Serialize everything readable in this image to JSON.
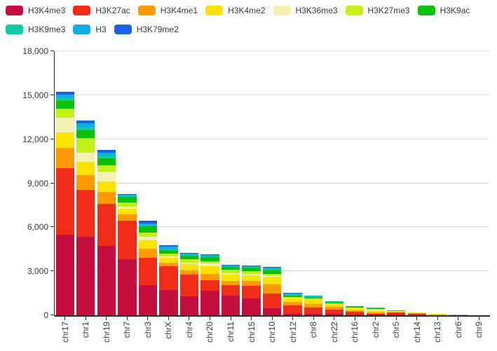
{
  "colors": {
    "background": "#ffffff",
    "grid_line": "#dcdcdc",
    "axis_line": "#2e2e2e",
    "x_axis_line": "#3a2b20",
    "axis_text": "#3b3b3b"
  },
  "chart_data": {
    "type": "bar",
    "stacked": true,
    "title": "",
    "xlabel": "",
    "ylabel": "",
    "grid": true,
    "legend_position": "top-left",
    "x_label_rotation": -90,
    "ylim": [
      0,
      18000
    ],
    "yticks": [
      0,
      3000,
      6000,
      9000,
      12000,
      15000,
      18000
    ],
    "ytick_labels": [
      "0",
      "3,000",
      "6,000",
      "9,000",
      "12,000",
      "15,000",
      "18,000"
    ],
    "categories": [
      "chr17",
      "chr1",
      "chr19",
      "chr7",
      "chr3",
      "chrX",
      "chr4",
      "chr20",
      "chr11",
      "chr15",
      "chr10",
      "chr12",
      "chr8",
      "chr22",
      "chr16",
      "chr2",
      "chr5",
      "chr14",
      "chr13",
      "chr6",
      "chr9"
    ],
    "series": [
      {
        "name": "H3K4me3",
        "color": "#c50f3f",
        "values": [
          5470,
          5360,
          4750,
          3840,
          2030,
          1740,
          1310,
          1650,
          1360,
          1170,
          480,
          110,
          120,
          90,
          50,
          40,
          30,
          15,
          5,
          3,
          2
        ]
      },
      {
        "name": "H3K27ac",
        "color": "#ee2c18",
        "values": [
          4575,
          3200,
          2850,
          2620,
          1890,
          1580,
          1450,
          750,
          670,
          830,
          1010,
          550,
          400,
          300,
          185,
          80,
          150,
          100,
          12,
          8,
          6
        ]
      },
      {
        "name": "H3K4me1",
        "color": "#fe9a00",
        "values": [
          1390,
          995,
          800,
          430,
          595,
          240,
          320,
          400,
          320,
          320,
          590,
          230,
          240,
          180,
          110,
          70,
          30,
          15,
          40,
          35,
          10
        ]
      },
      {
        "name": "H3K4me2",
        "color": "#fbe300",
        "values": [
          1040,
          925,
          700,
          360,
          605,
          340,
          400,
          560,
          415,
          420,
          530,
          240,
          320,
          190,
          150,
          90,
          25,
          15,
          25,
          12,
          4
        ]
      },
      {
        "name": "H3K36me3",
        "color": "#f4f0b2",
        "values": [
          990,
          610,
          705,
          160,
          210,
          125,
          125,
          160,
          115,
          100,
          100,
          60,
          40,
          35,
          25,
          140,
          20,
          20,
          5,
          3,
          1
        ]
      },
      {
        "name": "H3K27me3",
        "color": "#c2f016",
        "values": [
          610,
          1010,
          420,
          270,
          300,
          165,
          210,
          160,
          205,
          190,
          130,
          60,
          40,
          35,
          20,
          25,
          20,
          10,
          4,
          2,
          1
        ]
      },
      {
        "name": "H3K9ac",
        "color": "#07c107",
        "values": [
          530,
          530,
          480,
          400,
          420,
          270,
          270,
          270,
          225,
          210,
          220,
          80,
          60,
          40,
          25,
          40,
          35,
          10,
          3,
          2,
          1
        ]
      },
      {
        "name": "H3K9me3",
        "color": "#0ec9a4",
        "values": [
          205,
          220,
          160,
          80,
          95,
          90,
          60,
          60,
          50,
          50,
          145,
          150,
          100,
          70,
          30,
          35,
          8,
          4,
          2,
          1,
          0
        ]
      },
      {
        "name": "H3",
        "color": "#10ade2",
        "values": [
          225,
          260,
          225,
          70,
          125,
          115,
          50,
          90,
          45,
          50,
          45,
          25,
          20,
          15,
          7,
          7,
          2,
          1,
          0,
          0,
          0
        ]
      },
      {
        "name": "H3K79me2",
        "color": "#1863e6",
        "values": [
          190,
          190,
          190,
          55,
          160,
          135,
          40,
          70,
          40,
          40,
          35,
          15,
          10,
          5,
          3,
          3,
          1,
          0,
          0,
          0,
          0
        ]
      }
    ]
  }
}
